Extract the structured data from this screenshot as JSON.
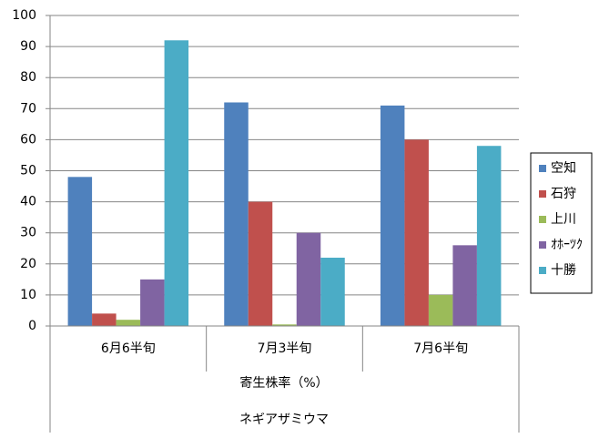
{
  "chart_data": {
    "type": "bar",
    "categories": [
      "6月6半旬",
      "7月3半旬",
      "7月6半旬"
    ],
    "xlabel": "寄生株率（%）",
    "group_label": "ネギアザミウマ",
    "series": [
      {
        "name": "空知",
        "color": "#4f81bd",
        "values": [
          48,
          72,
          71
        ]
      },
      {
        "name": "石狩",
        "color": "#c0504d",
        "values": [
          4,
          40,
          60
        ]
      },
      {
        "name": "上川",
        "color": "#9bbb59",
        "values": [
          2,
          0.5,
          10
        ]
      },
      {
        "name": "ｵﾎｰﾂｸ",
        "color": "#8064a2",
        "values": [
          15,
          30,
          26
        ]
      },
      {
        "name": "十勝",
        "color": "#4bacc6",
        "values": [
          92,
          22,
          58
        ]
      }
    ],
    "ylim": [
      0,
      100
    ],
    "yticks": [
      0,
      10,
      20,
      30,
      40,
      50,
      60,
      70,
      80,
      90,
      100
    ],
    "grid": true,
    "legend": "right"
  }
}
